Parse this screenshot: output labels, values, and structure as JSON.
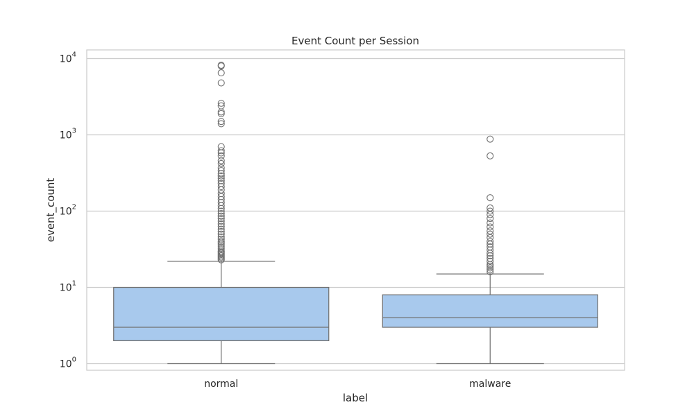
{
  "chart_data": {
    "type": "box",
    "title": "Event Count per Session",
    "xlabel": "label",
    "ylabel": "event_count",
    "yscale": "log",
    "ylim": [
      0.82,
      13000
    ],
    "grid": true,
    "yticks": [
      {
        "value": 1,
        "base": "10",
        "exp": "0"
      },
      {
        "value": 10,
        "base": "10",
        "exp": "1"
      },
      {
        "value": 100,
        "base": "10",
        "exp": "2"
      },
      {
        "value": 1000,
        "base": "10",
        "exp": "3"
      },
      {
        "value": 10000,
        "base": "10",
        "exp": "4"
      }
    ],
    "categories": [
      "normal",
      "malware"
    ],
    "colors": {
      "box_fill": "#a8c9ed",
      "line": "#707070",
      "grid": "#cccccc",
      "frame": "#cccccc"
    },
    "boxes": [
      {
        "category": "normal",
        "whisker_low": 1,
        "q1": 2,
        "median": 3,
        "q3": 10,
        "whisker_high": 22,
        "outliers": [
          23,
          24,
          25,
          26,
          27,
          28,
          29,
          30,
          32,
          34,
          36,
          38,
          40,
          43,
          46,
          50,
          54,
          58,
          63,
          68,
          74,
          80,
          86,
          93,
          100,
          108,
          118,
          130,
          142,
          155,
          170,
          190,
          210,
          230,
          250,
          270,
          290,
          310,
          340,
          370,
          420,
          460,
          530,
          580,
          620,
          700,
          1400,
          1500,
          1900,
          2000,
          2400,
          2600,
          4800,
          6500,
          8000,
          8200
        ]
      },
      {
        "category": "malware",
        "whisker_low": 1,
        "q1": 3,
        "median": 4,
        "q3": 8,
        "whisker_high": 15,
        "outliers": [
          16,
          17,
          18,
          19,
          20,
          22,
          24,
          26,
          28,
          31,
          34,
          37,
          40,
          45,
          50,
          55,
          62,
          70,
          80,
          90,
          100,
          110,
          150,
          530,
          880
        ]
      }
    ]
  }
}
